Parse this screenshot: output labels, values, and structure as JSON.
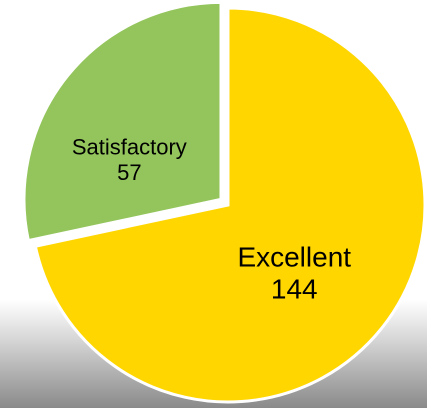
{
  "chart_data": {
    "type": "pie",
    "categories": [
      "Excellent",
      "Satisfactory"
    ],
    "values": [
      144,
      57
    ],
    "colors": [
      "#FFD600",
      "#93C55C"
    ]
  }
}
